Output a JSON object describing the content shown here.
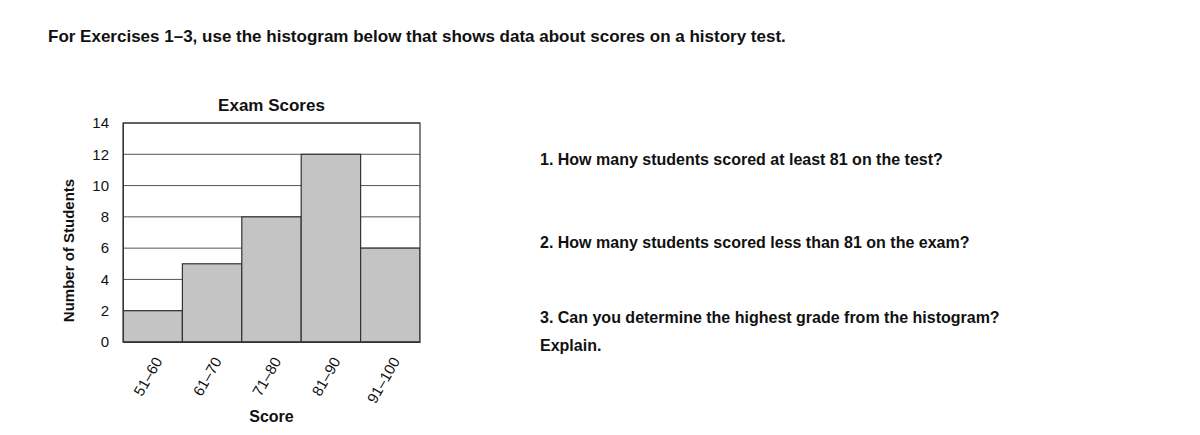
{
  "chart_data": {
    "type": "bar",
    "title": "Exam Scores",
    "x_label": "Score",
    "y_label": "Number of Students",
    "categories": [
      "51–60",
      "61–70",
      "71–80",
      "81–90",
      "91–100"
    ],
    "values": [
      2,
      5,
      8,
      12,
      6
    ],
    "color": "#c4c4c4",
    "ylim": [
      0,
      14
    ],
    "yticks": [
      0,
      2,
      4,
      6,
      8,
      10,
      12,
      14
    ],
    "grid": true
  },
  "document": {
    "heading": "For Exercises 1–3, use the histogram below that shows data about scores on a history test.",
    "questions": [
      [
        "1. How many students scored at least 81 on the test?"
      ],
      [
        "2. How many students scored less than 81 on the exam?"
      ],
      [
        "3. Can you determine the highest grade from the histogram?",
        "Explain."
      ]
    ]
  }
}
